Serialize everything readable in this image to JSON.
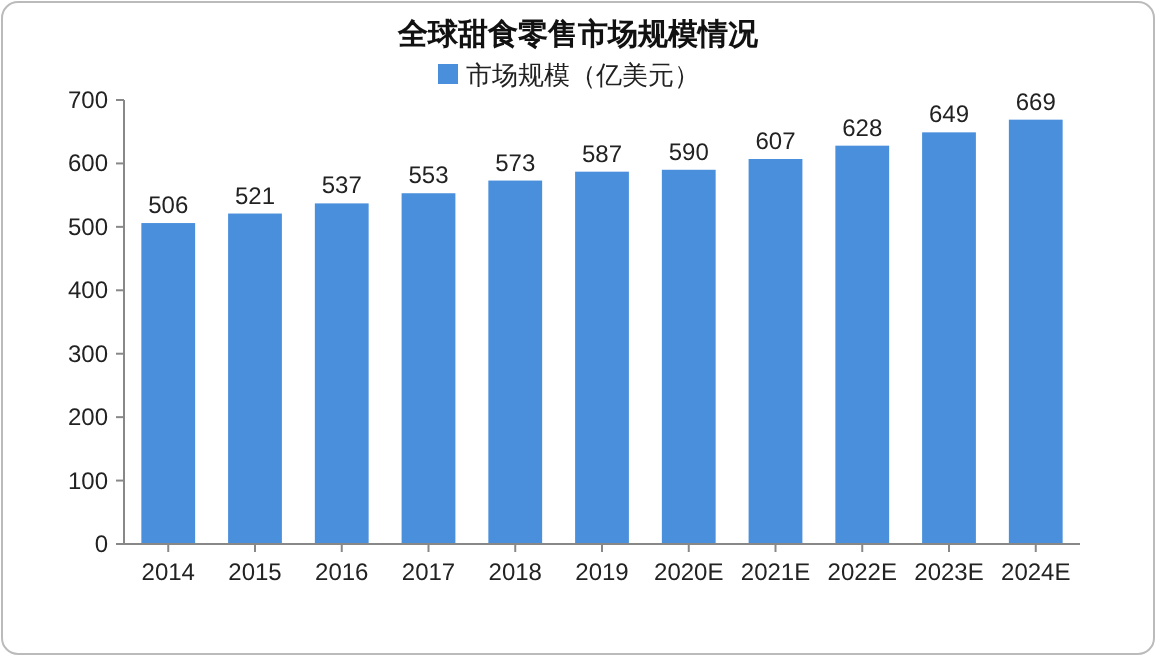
{
  "chart_data": {
    "type": "bar",
    "title": "全球甜食零售市场规模情况",
    "categories": [
      "2014",
      "2015",
      "2016",
      "2017",
      "2018",
      "2019",
      "2020E",
      "2021E",
      "2022E",
      "2023E",
      "2024E"
    ],
    "series": [
      {
        "name": "市场规模（亿美元）",
        "color": "#4a8fdc",
        "values": [
          506,
          521,
          537,
          553,
          573,
          587,
          590,
          607,
          628,
          649,
          669
        ]
      }
    ],
    "ylim": [
      0,
      700
    ],
    "yticks": [
      0,
      100,
      200,
      300,
      400,
      500,
      600,
      700
    ],
    "grid": false,
    "legend": "top",
    "data_labels": true
  }
}
